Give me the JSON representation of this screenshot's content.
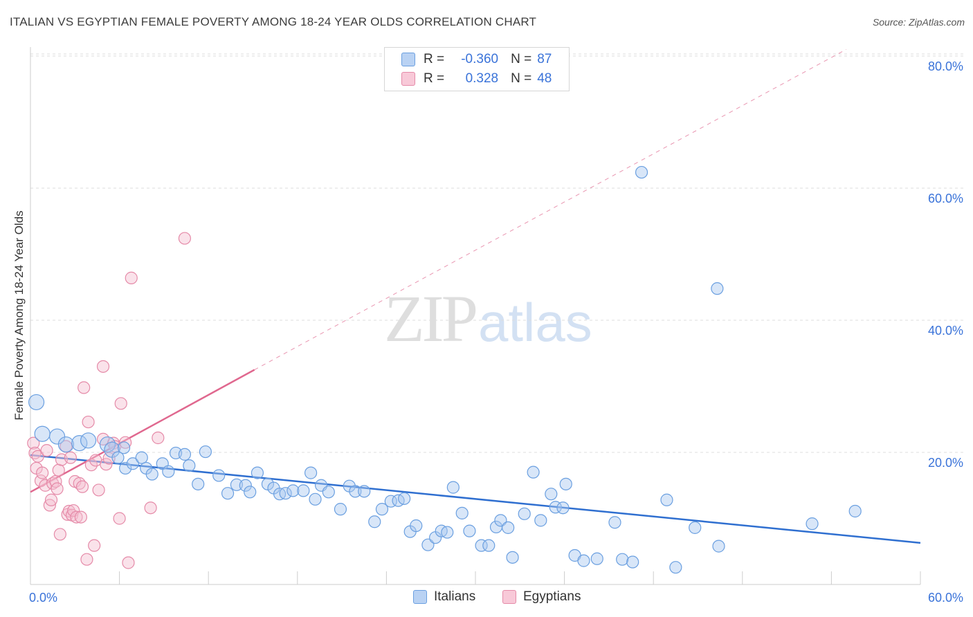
{
  "title": "ITALIAN VS EGYPTIAN FEMALE POVERTY AMONG 18-24 YEAR OLDS CORRELATION CHART",
  "source": "Source: ZipAtlas.com",
  "watermark": {
    "zip": "ZIP",
    "atlas": "atlas"
  },
  "colors": {
    "italian": "#6a9fe0",
    "italian_fill": "#a9c8f0",
    "italian_line": "#2f6fd0",
    "egyptian": "#e58aa8",
    "egyptian_fill": "#f5bfd0",
    "egyptian_line": "#e0688f",
    "axis_text": "#3a73d9",
    "grid": "#dddddd"
  },
  "legend_top": {
    "rows": [
      {
        "r_label": "R =",
        "r_value": "-0.360",
        "n_label": "N =",
        "n_value": "87"
      },
      {
        "r_label": "R =",
        "r_value": "0.328",
        "n_label": "N =",
        "n_value": "48"
      }
    ]
  },
  "chart_data": {
    "type": "scatter",
    "title": "ITALIAN VS EGYPTIAN FEMALE POVERTY AMONG 18-24 YEAR OLDS CORRELATION CHART",
    "xlabel": "",
    "ylabel": "Female Poverty Among 18-24 Year Olds",
    "xlim": [
      0,
      60
    ],
    "ylim": [
      0,
      82
    ],
    "x_tick_labels": [
      "0.0%",
      "60.0%"
    ],
    "y_ticks": [
      20,
      40,
      60,
      80
    ],
    "y_tick_labels": [
      "20.0%",
      "40.0%",
      "60.0%",
      "80.0%"
    ],
    "grid": true,
    "legend_position": "bottom-center",
    "series": [
      {
        "name": "Italians",
        "r": -0.36,
        "n": 87,
        "trend": {
          "x": [
            0,
            60
          ],
          "y": [
            19.6,
            6.3
          ]
        },
        "points": [
          [
            0.4,
            27.6
          ],
          [
            0.8,
            22.8
          ],
          [
            1.8,
            22.4
          ],
          [
            2.4,
            21.2
          ],
          [
            3.3,
            21.4
          ],
          [
            3.9,
            21.8
          ],
          [
            5.2,
            21.2
          ],
          [
            5.5,
            20.4
          ],
          [
            5.9,
            19.2
          ],
          [
            6.3,
            20.7
          ],
          [
            6.4,
            17.6
          ],
          [
            6.9,
            18.3
          ],
          [
            7.5,
            19.2
          ],
          [
            7.8,
            17.6
          ],
          [
            8.2,
            16.7
          ],
          [
            8.9,
            18.3
          ],
          [
            9.3,
            17.1
          ],
          [
            9.8,
            19.9
          ],
          [
            10.4,
            19.7
          ],
          [
            10.7,
            18.0
          ],
          [
            11.3,
            15.2
          ],
          [
            11.8,
            20.1
          ],
          [
            12.7,
            16.5
          ],
          [
            13.3,
            13.8
          ],
          [
            13.9,
            15.1
          ],
          [
            14.5,
            15.0
          ],
          [
            14.8,
            14.0
          ],
          [
            15.3,
            16.9
          ],
          [
            16.0,
            15.2
          ],
          [
            16.4,
            14.6
          ],
          [
            16.8,
            13.7
          ],
          [
            17.2,
            13.8
          ],
          [
            17.7,
            14.2
          ],
          [
            18.4,
            14.2
          ],
          [
            18.9,
            16.9
          ],
          [
            19.2,
            12.9
          ],
          [
            19.6,
            15.0
          ],
          [
            20.1,
            14.0
          ],
          [
            20.9,
            11.4
          ],
          [
            21.5,
            14.9
          ],
          [
            21.9,
            14.1
          ],
          [
            22.5,
            14.1
          ],
          [
            23.2,
            9.5
          ],
          [
            23.7,
            11.4
          ],
          [
            24.3,
            12.6
          ],
          [
            24.8,
            12.7
          ],
          [
            25.2,
            13.0
          ],
          [
            25.6,
            8.0
          ],
          [
            26.0,
            8.9
          ],
          [
            26.8,
            6.0
          ],
          [
            27.3,
            7.1
          ],
          [
            27.7,
            8.1
          ],
          [
            28.1,
            7.9
          ],
          [
            28.5,
            14.7
          ],
          [
            29.1,
            10.8
          ],
          [
            29.6,
            8.1
          ],
          [
            30.4,
            5.9
          ],
          [
            30.9,
            5.9
          ],
          [
            31.4,
            8.7
          ],
          [
            31.7,
            9.7
          ],
          [
            32.2,
            8.6
          ],
          [
            32.5,
            4.1
          ],
          [
            33.3,
            10.7
          ],
          [
            33.9,
            17.0
          ],
          [
            34.4,
            9.7
          ],
          [
            35.1,
            13.7
          ],
          [
            35.4,
            11.7
          ],
          [
            35.9,
            11.6
          ],
          [
            36.1,
            15.2
          ],
          [
            36.7,
            4.4
          ],
          [
            37.3,
            3.6
          ],
          [
            38.2,
            3.9
          ],
          [
            39.4,
            9.4
          ],
          [
            39.9,
            3.8
          ],
          [
            40.6,
            3.4
          ],
          [
            41.2,
            62.4
          ],
          [
            42.9,
            12.8
          ],
          [
            43.5,
            2.6
          ],
          [
            44.8,
            8.6
          ],
          [
            46.3,
            44.8
          ],
          [
            46.4,
            5.8
          ],
          [
            52.7,
            9.2
          ],
          [
            55.6,
            11.1
          ]
        ]
      },
      {
        "name": "Egyptians",
        "r": 0.328,
        "n": 48,
        "trend": {
          "x": [
            0,
            15.1
          ],
          "y": [
            14.0,
            32.5
          ]
        },
        "trend_extension": {
          "x": [
            15.1,
            55.0
          ],
          "y": [
            32.5,
            81.0
          ]
        },
        "points": [
          [
            0.2,
            21.4
          ],
          [
            0.3,
            19.9
          ],
          [
            0.4,
            17.6
          ],
          [
            0.5,
            19.4
          ],
          [
            0.7,
            15.7
          ],
          [
            0.8,
            16.9
          ],
          [
            1.0,
            15.0
          ],
          [
            1.1,
            20.3
          ],
          [
            1.3,
            12.0
          ],
          [
            1.4,
            12.8
          ],
          [
            1.5,
            15.3
          ],
          [
            1.7,
            15.6
          ],
          [
            1.8,
            14.5
          ],
          [
            1.9,
            17.3
          ],
          [
            2.0,
            7.6
          ],
          [
            2.1,
            18.9
          ],
          [
            2.4,
            20.9
          ],
          [
            2.5,
            10.6
          ],
          [
            2.6,
            11.1
          ],
          [
            2.7,
            19.2
          ],
          [
            2.8,
            10.5
          ],
          [
            2.9,
            11.2
          ],
          [
            3.0,
            15.6
          ],
          [
            3.1,
            10.2
          ],
          [
            3.3,
            15.3
          ],
          [
            3.4,
            10.2
          ],
          [
            3.5,
            14.8
          ],
          [
            3.6,
            29.8
          ],
          [
            3.8,
            3.8
          ],
          [
            3.9,
            24.6
          ],
          [
            4.1,
            18.1
          ],
          [
            4.3,
            5.9
          ],
          [
            4.4,
            18.8
          ],
          [
            4.6,
            14.3
          ],
          [
            4.9,
            22.0
          ],
          [
            4.9,
            33.0
          ],
          [
            5.1,
            18.2
          ],
          [
            5.3,
            19.1
          ],
          [
            5.6,
            21.4
          ],
          [
            5.7,
            20.9
          ],
          [
            6.0,
            10.0
          ],
          [
            6.1,
            27.4
          ],
          [
            6.4,
            21.5
          ],
          [
            6.6,
            3.3
          ],
          [
            6.8,
            46.4
          ],
          [
            8.1,
            11.6
          ],
          [
            8.6,
            22.2
          ],
          [
            10.4,
            52.4
          ]
        ]
      }
    ]
  },
  "bottom_legend": [
    {
      "label": "Italians"
    },
    {
      "label": "Egyptians"
    }
  ]
}
